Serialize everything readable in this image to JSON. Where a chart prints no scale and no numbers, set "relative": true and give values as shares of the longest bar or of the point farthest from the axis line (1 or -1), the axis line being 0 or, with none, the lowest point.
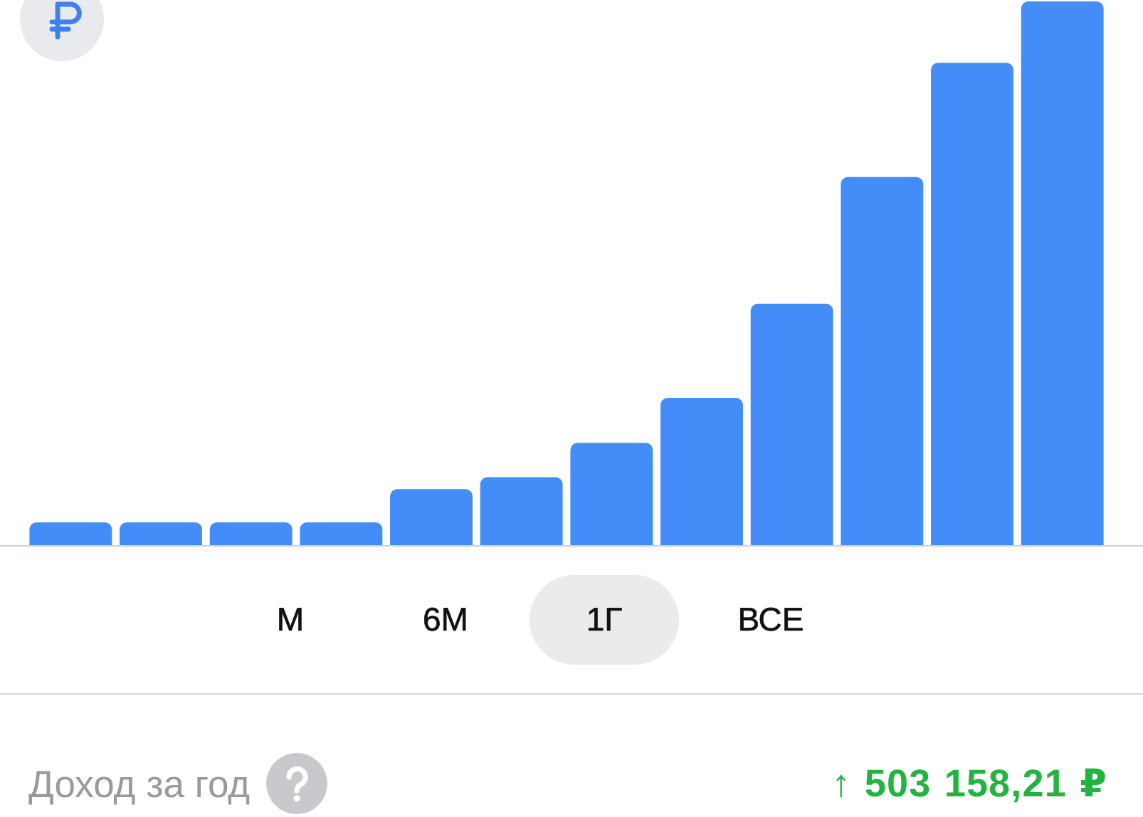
{
  "chart_data": {
    "type": "bar",
    "categories": [
      null,
      null,
      null,
      null,
      null,
      null,
      null,
      null,
      null,
      null,
      null,
      null
    ],
    "values": [
      0.042,
      0.042,
      0.042,
      0.042,
      0.103,
      0.125,
      0.188,
      0.271,
      0.444,
      0.677,
      0.887,
      1
    ],
    "color": "#448cf8",
    "relative": true,
    "tick_labels": false,
    "annotations": [
      "М",
      "6М",
      "1Г",
      "ВСЕ",
      "Доход за год",
      "↑ 503 158,21 ₽"
    ]
  }
}
